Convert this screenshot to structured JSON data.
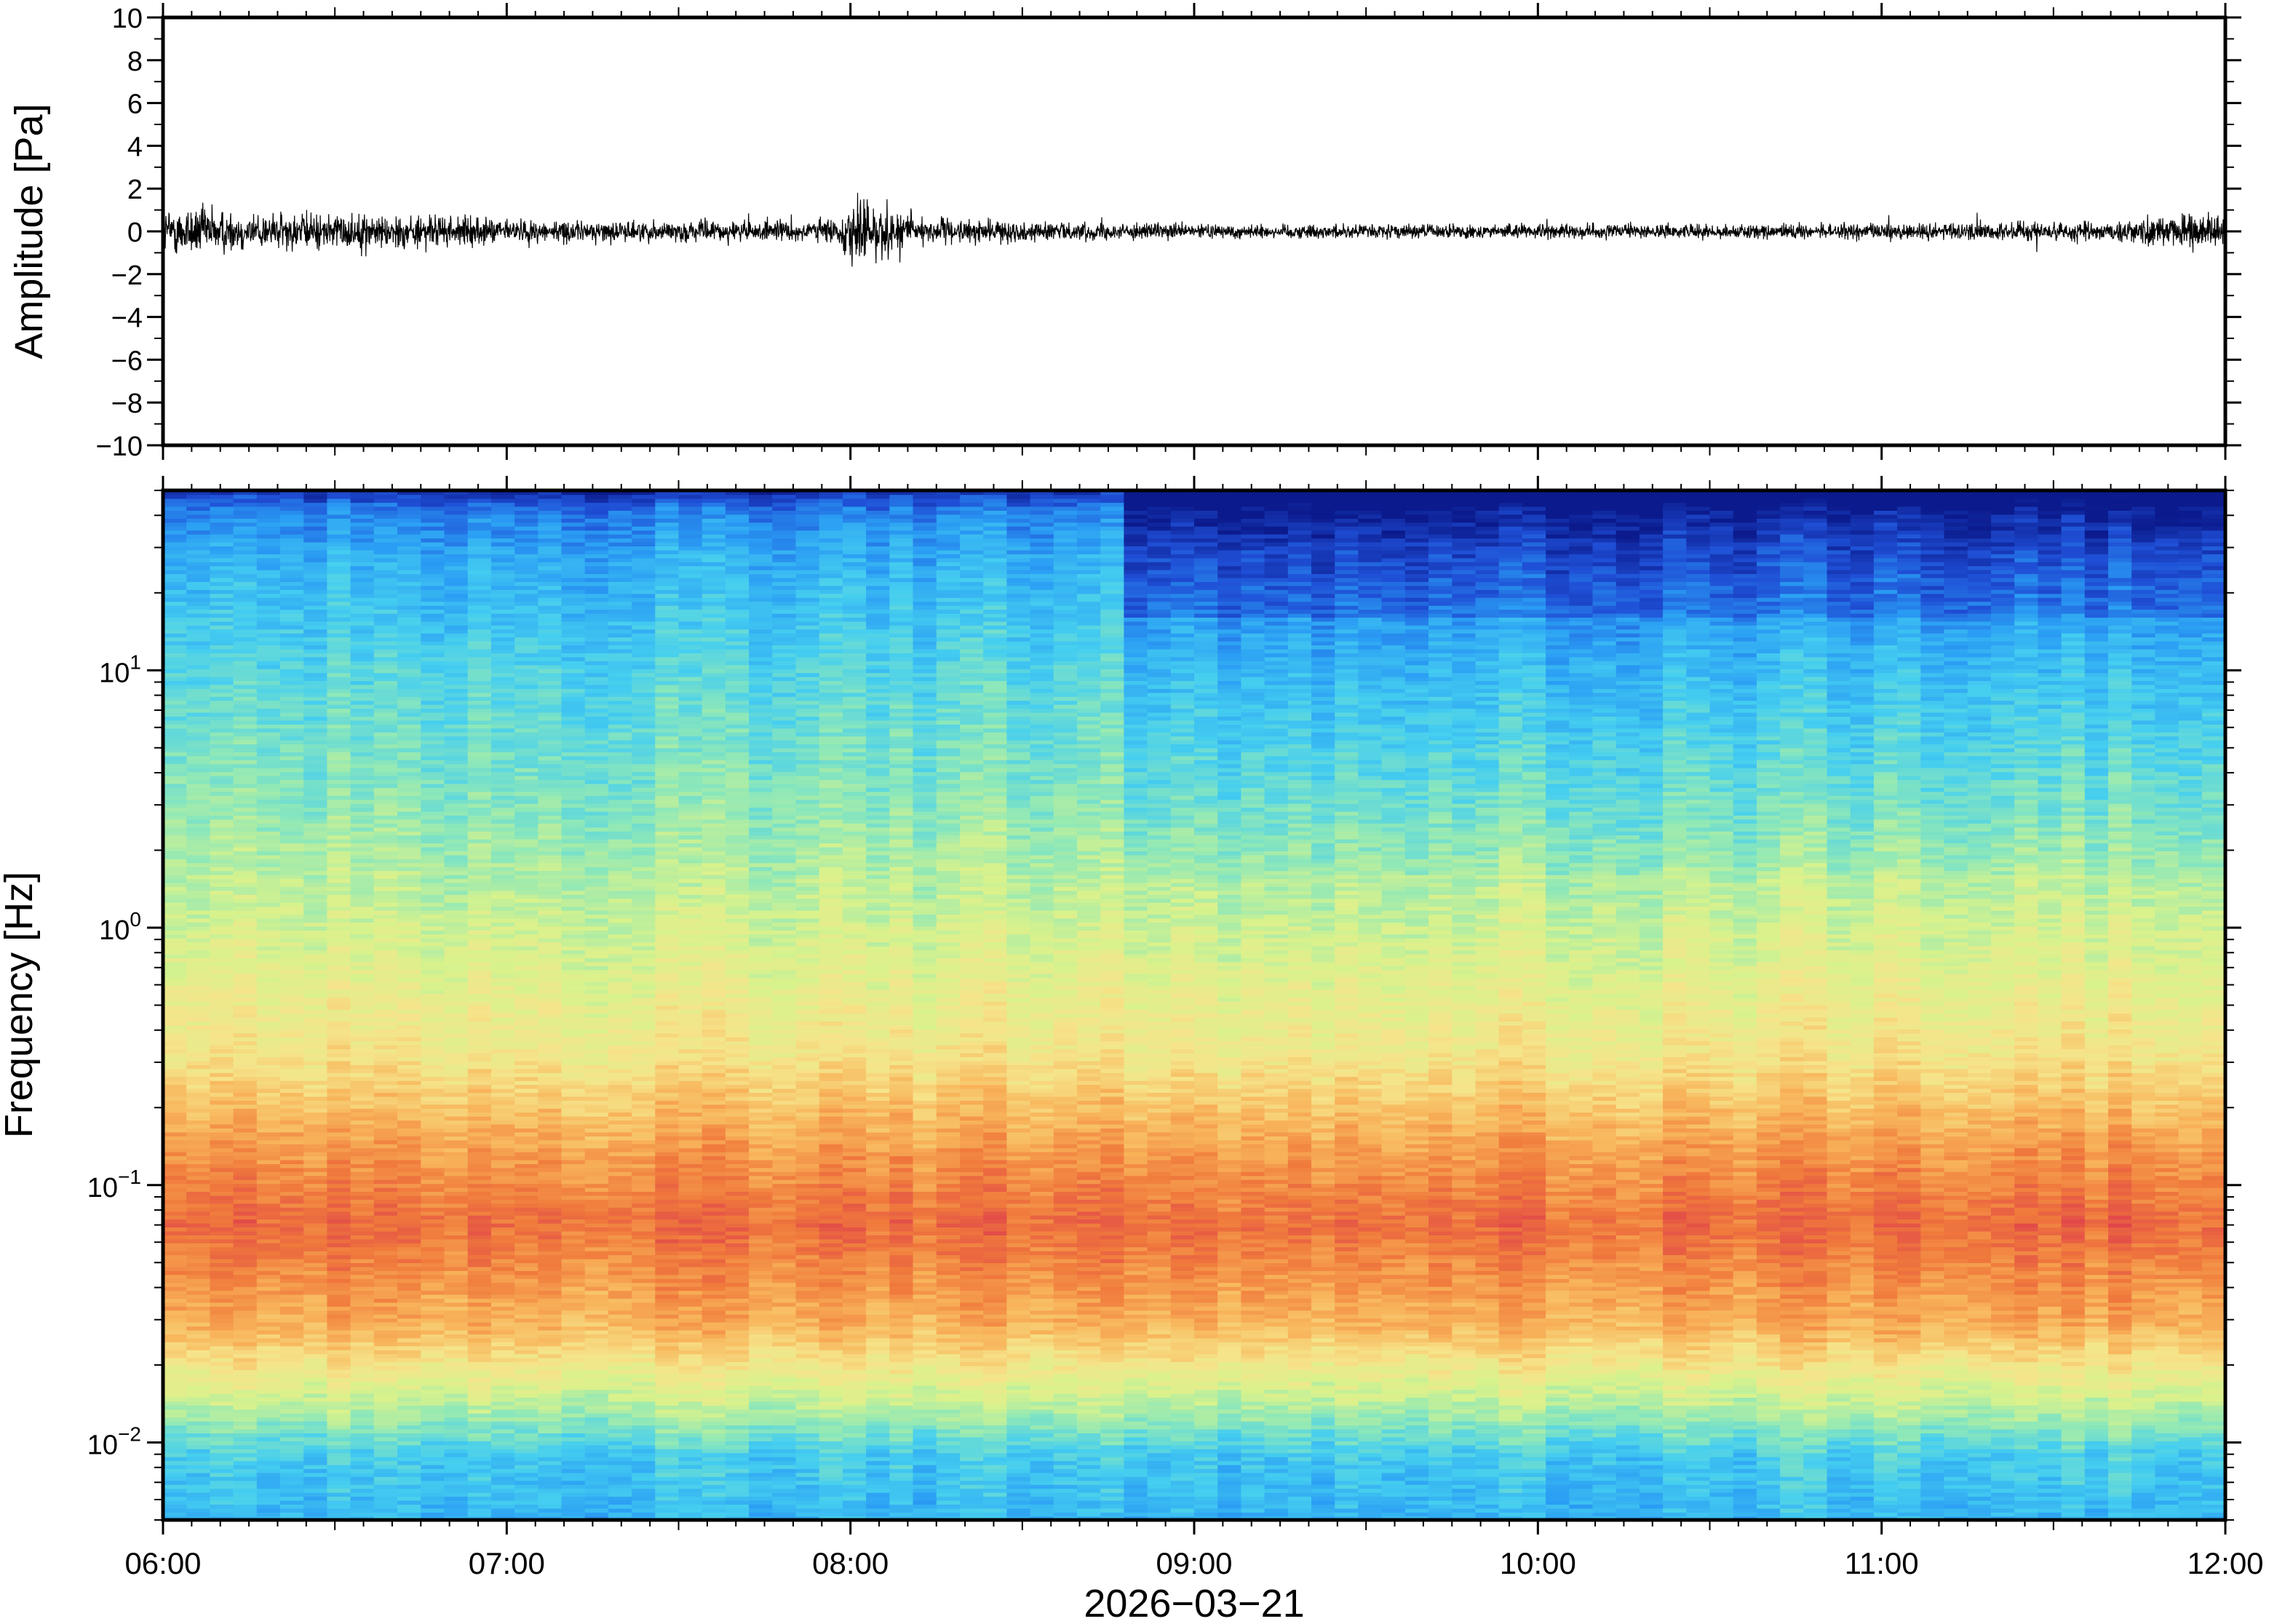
{
  "chart_data": [
    {
      "type": "line",
      "panel": "waveform",
      "ylabel": "Amplitude [Pa]",
      "ylim": [
        -10,
        10
      ],
      "yticks": [
        -10,
        -8,
        -6,
        -4,
        -2,
        0,
        2,
        4,
        6,
        8,
        10
      ],
      "ytick_labels": [
        "−10",
        "−8",
        "−6",
        "−4",
        "−2",
        "0",
        "2",
        "4",
        "6",
        "8",
        "10"
      ],
      "xlim": [
        "06:00",
        "12:00"
      ],
      "grid": false,
      "series": [
        {
          "x_hours": [
            6.0,
            6.1,
            6.2,
            6.3,
            6.5,
            6.75,
            7.0,
            7.25,
            7.5,
            7.75,
            7.97,
            8.0,
            8.25,
            8.5,
            8.75,
            9.0,
            9.25,
            9.5,
            9.75,
            10.0,
            10.25,
            10.5,
            10.75,
            11.0,
            11.25,
            11.5,
            11.75,
            12.0
          ],
          "envelope_pa": [
            1.1,
            1.3,
            1.0,
            0.9,
            0.9,
            0.8,
            0.6,
            0.5,
            0.5,
            0.5,
            0.6,
            1.8,
            0.6,
            0.5,
            0.4,
            0.35,
            0.35,
            0.35,
            0.35,
            0.35,
            0.35,
            0.35,
            0.35,
            0.4,
            0.45,
            0.5,
            0.6,
            1.0
          ],
          "color": "#000000"
        }
      ]
    },
    {
      "type": "heatmap",
      "panel": "spectrogram",
      "ylabel": "Frequency [Hz]",
      "xlabel": "2026−03−21",
      "yscale": "log",
      "ylim": [
        0.005,
        50
      ],
      "yticks": [
        {
          "value": 0.01,
          "base": "10",
          "exp": "−2"
        },
        {
          "value": 0.1,
          "base": "10",
          "exp": "−1"
        },
        {
          "value": 1,
          "base": "10",
          "exp": "0"
        },
        {
          "value": 10,
          "base": "10",
          "exp": "1"
        }
      ],
      "xticks": [
        "06:00",
        "07:00",
        "08:00",
        "09:00",
        "10:00",
        "11:00",
        "12:00"
      ],
      "colormap": [
        "#0b1a8c",
        "#1f4fd6",
        "#2a9df4",
        "#45cef0",
        "#8ee8b8",
        "#d8f28c",
        "#f6e48a",
        "#f8b45a",
        "#f07a3c",
        "#e0454a"
      ],
      "description_colors": {
        "low": "#45cef0",
        "high": "#e0454a"
      },
      "regime_change_hour": 8.8
    }
  ]
}
